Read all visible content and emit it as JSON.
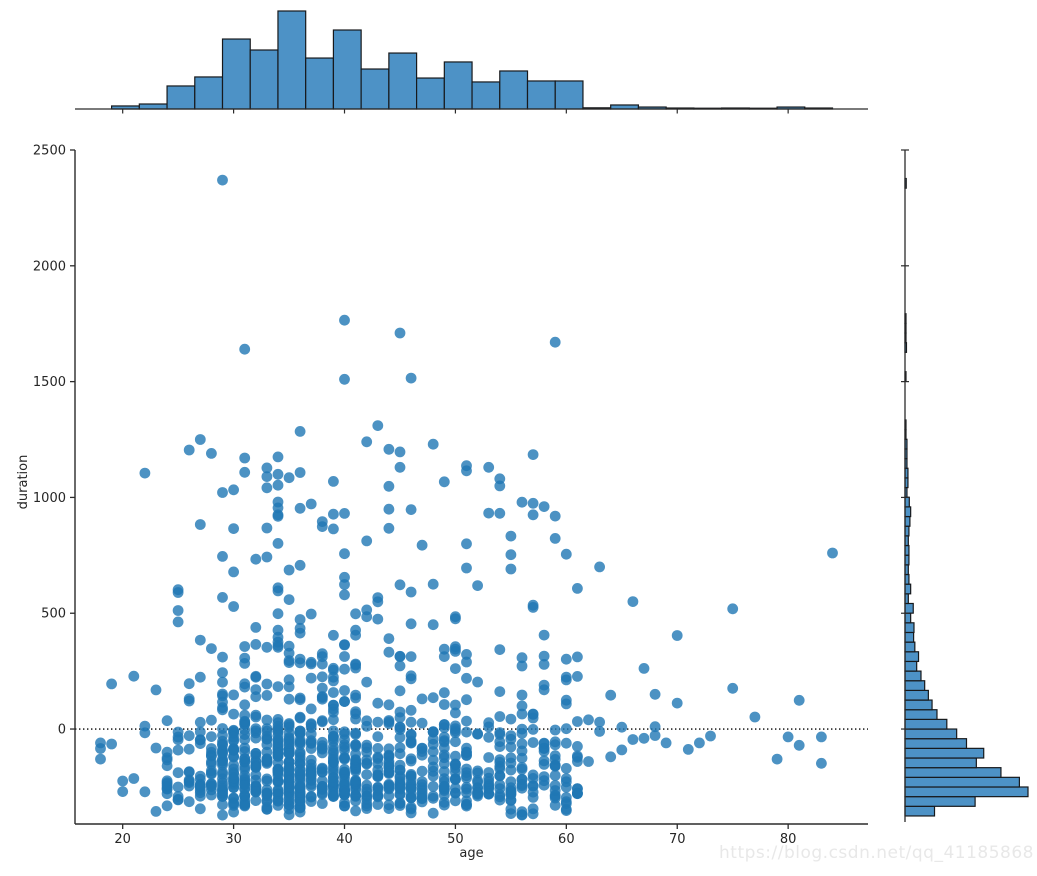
{
  "figure": {
    "xlabel": "age",
    "ylabel": "duration",
    "watermark": "https://blog.csdn.net/qq_41185868",
    "colors": {
      "scatter": "#1f77b4",
      "hist_fill": "#4d92c6",
      "hist_edge": "#17191c",
      "spine": "#2b2b2b",
      "text": "#262626",
      "zero_line": "#000000",
      "watermark": "#e8e8e8"
    }
  },
  "chart_data": {
    "type": "scatter",
    "subtype": "jointplot_with_marginal_histograms",
    "title": "",
    "xlabel": "age",
    "ylabel": "duration",
    "xlim": [
      15.7,
      87.2
    ],
    "ylim": [
      -410,
      2500
    ],
    "x_ticks": [
      20,
      30,
      40,
      50,
      60,
      70,
      80
    ],
    "y_ticks": [
      0,
      500,
      1000,
      1500,
      2000,
      2500
    ],
    "grid": false,
    "legend": false,
    "zero_line_y": 0,
    "top_histogram": {
      "axis": "age",
      "bin_start": 19,
      "bin_size": 2.5,
      "values_norm": [
        0.031,
        0.051,
        0.235,
        0.327,
        0.714,
        0.602,
        1.0,
        0.52,
        0.806,
        0.408,
        0.571,
        0.316,
        0.48,
        0.276,
        0.388,
        0.286,
        0.286,
        0.012,
        0.041,
        0.02,
        0.01,
        0.008,
        0.01,
        0.008,
        0.02,
        0.01
      ]
    },
    "right_histogram": {
      "axis": "duration",
      "bin_start": -375.3,
      "bin_size": 41.7,
      "values_norm": [
        0.24,
        0.57,
        1.0,
        0.93,
        0.78,
        0.58,
        0.64,
        0.5,
        0.42,
        0.34,
        0.26,
        0.22,
        0.19,
        0.16,
        0.13,
        0.095,
        0.11,
        0.08,
        0.07,
        0.073,
        0.046,
        0.067,
        0.027,
        0.046,
        0.032,
        0.027,
        0.032,
        0.032,
        0.027,
        0.032,
        0.04,
        0.046,
        0.035,
        0.016,
        0.024,
        0.024,
        0.016,
        0.016,
        0.016,
        0.008,
        0.008,
        0,
        0,
        0,
        0,
        0.008,
        0,
        0,
        0.012,
        0.008,
        0.008,
        0.008,
        0,
        0,
        0,
        0,
        0,
        0,
        0,
        0,
        0,
        0,
        0,
        0,
        0,
        0.01
      ]
    },
    "scatter": {
      "marker_radius_px": 5.4,
      "marker_opacity": 0.8,
      "outlier_points": [
        [
          29,
          2370
        ],
        [
          40,
          1765
        ],
        [
          45,
          1710
        ],
        [
          59,
          1670
        ],
        [
          31,
          1640
        ],
        [
          46,
          1515
        ],
        [
          40,
          1510
        ],
        [
          43,
          1310
        ],
        [
          36,
          1285
        ],
        [
          27,
          1250
        ],
        [
          42,
          1240
        ],
        [
          48,
          1230
        ],
        [
          28,
          1190
        ],
        [
          57,
          1185
        ],
        [
          31,
          1170
        ],
        [
          53,
          1130
        ],
        [
          22,
          1105
        ],
        [
          34,
          1100
        ],
        [
          33,
          1090
        ],
        [
          35,
          1085
        ],
        [
          57,
          925
        ],
        [
          59,
          823
        ],
        [
          60,
          755
        ]
      ],
      "sparse_points": [
        [
          62,
          40
        ],
        [
          62,
          -140
        ],
        [
          63,
          30
        ],
        [
          63,
          -10
        ],
        [
          63,
          700
        ],
        [
          64,
          146
        ],
        [
          64,
          -120
        ],
        [
          65,
          8
        ],
        [
          65,
          -90
        ],
        [
          66,
          550
        ],
        [
          66,
          -45
        ],
        [
          67,
          262
        ],
        [
          67,
          -40
        ],
        [
          68,
          150
        ],
        [
          68,
          10
        ],
        [
          68,
          -28
        ],
        [
          69,
          -60
        ],
        [
          70,
          404
        ],
        [
          70,
          112
        ],
        [
          71,
          -88
        ],
        [
          72,
          -60
        ],
        [
          73,
          -30
        ],
        [
          75,
          519
        ],
        [
          75,
          176
        ],
        [
          77,
          52
        ],
        [
          79,
          -130
        ],
        [
          80,
          -34
        ],
        [
          81,
          124
        ],
        [
          81,
          -70
        ],
        [
          83,
          -34
        ],
        [
          83,
          -148
        ],
        [
          84,
          760
        ],
        [
          18,
          -60
        ],
        [
          18,
          -130
        ],
        [
          18,
          -84
        ]
      ],
      "cloud": {
        "seed": 42,
        "points_per_weight": 55,
        "age_weights": {
          "ages": [
            19,
            20,
            21,
            22,
            23,
            24,
            25,
            26,
            27,
            28,
            29,
            30,
            31,
            32,
            33,
            34,
            35,
            36,
            37,
            38,
            39,
            40,
            41,
            42,
            43,
            44,
            45,
            46,
            47,
            48,
            49,
            50,
            51,
            52,
            53,
            54,
            55,
            56,
            57,
            58,
            59,
            60,
            61
          ],
          "weights": [
            0.031,
            0.031,
            0.031,
            0.051,
            0.051,
            0.235,
            0.235,
            0.235,
            0.327,
            0.327,
            0.714,
            0.714,
            0.714,
            0.602,
            0.602,
            1.0,
            1.0,
            1.0,
            0.52,
            0.52,
            0.806,
            0.806,
            0.806,
            0.408,
            0.408,
            0.571,
            0.571,
            0.571,
            0.316,
            0.316,
            0.48,
            0.48,
            0.48,
            0.276,
            0.276,
            0.388,
            0.388,
            0.388,
            0.286,
            0.286,
            0.286,
            0.286,
            0.26
          ]
        },
        "duration_bins": {
          "bin_start": -375.3,
          "bin_size": 41.7,
          "weights": [
            0.24,
            0.57,
            1.0,
            0.93,
            0.78,
            0.58,
            0.64,
            0.5,
            0.42,
            0.34,
            0.26,
            0.22,
            0.19,
            0.16,
            0.13,
            0.095,
            0.11,
            0.08,
            0.07,
            0.073,
            0.046,
            0.067,
            0.027,
            0.046,
            0.032,
            0.027,
            0.032,
            0.032,
            0.027,
            0.032,
            0.04,
            0.046,
            0.035,
            0.016,
            0.024,
            0.024,
            0.016,
            0.016,
            0.016,
            0.008,
            0.008
          ]
        }
      }
    }
  }
}
